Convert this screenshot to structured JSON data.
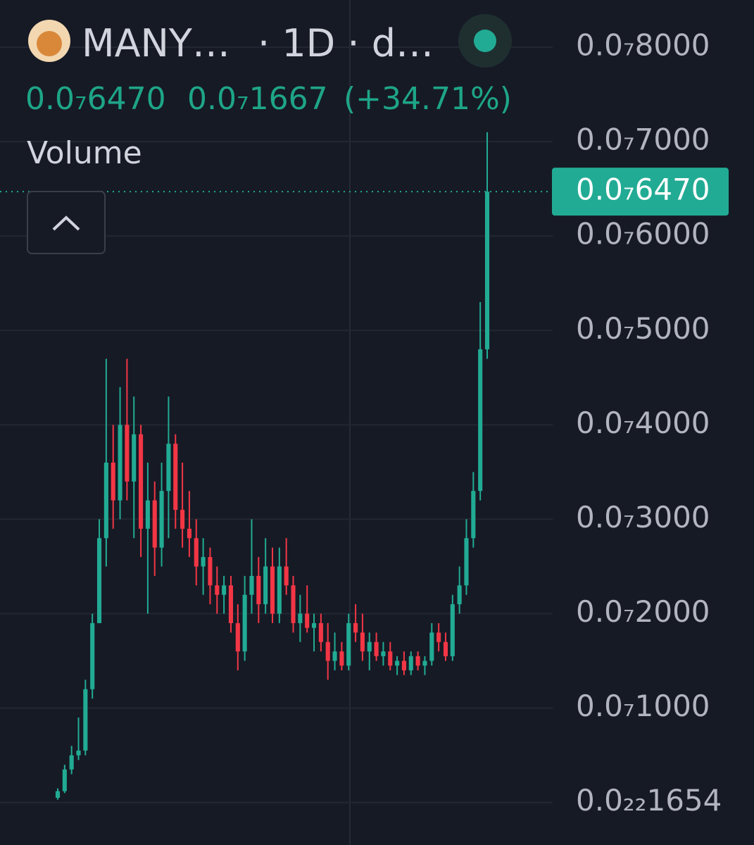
{
  "chart_data": {
    "type": "candlestick",
    "title": "MANY…",
    "subtitle": "· 1D · d…",
    "legend": {
      "price": "0.0₇6470",
      "change": "0.0₇1667",
      "change_percent": "(+34.71%)"
    },
    "indicator": "Volume",
    "up_color": "#22ab94",
    "down_color": "#f23645",
    "ylim": [
      -4.5e-09,
      8.5e-08
    ],
    "yticks": [
      {
        "value": 8e-08,
        "label": "0.0₇8000"
      },
      {
        "value": 7e-08,
        "label": "0.0₇7000"
      },
      {
        "value": 6e-08,
        "label": "0.0₇6000"
      },
      {
        "value": 5e-08,
        "label": "0.0₇5000"
      },
      {
        "value": 4e-08,
        "label": "0.0₇4000"
      },
      {
        "value": 3e-08,
        "label": "0.0₇3000"
      },
      {
        "value": 2e-08,
        "label": "0.0₇2000"
      },
      {
        "value": 1e-08,
        "label": "0.0₇1000"
      },
      {
        "value": 1.654e-23,
        "label": "0.0₂₂1654"
      }
    ],
    "last_price": {
      "value": 6.47e-08,
      "label": "0.0₇6470"
    },
    "grid": true,
    "open": [
      5e-10,
      1.2e-09,
      3.5e-09,
      5e-09,
      5.5e-09,
      1.2e-08,
      1.9e-08,
      2.8e-08,
      3.6e-08,
      3.2e-08,
      4e-08,
      3.4e-08,
      3.9e-08,
      2.9e-08,
      3.2e-08,
      2.7e-08,
      3.3e-08,
      3.8e-08,
      3.1e-08,
      2.9e-08,
      2.8e-08,
      2.5e-08,
      2.6e-08,
      2.3e-08,
      2.2e-08,
      2.3e-08,
      1.9e-08,
      1.6e-08,
      2.2e-08,
      2.4e-08,
      2.1e-08,
      2.5e-08,
      2e-08,
      2.5e-08,
      2.3e-08,
      1.9e-08,
      2e-08,
      1.85e-08,
      1.9e-08,
      1.7e-08,
      1.5e-08,
      1.6e-08,
      1.45e-08,
      1.9e-08,
      1.8e-08,
      1.6e-08,
      1.7e-08,
      1.55e-08,
      1.6e-08,
      1.45e-08,
      1.5e-08,
      1.4e-08,
      1.55e-08,
      1.45e-08,
      1.5e-08,
      1.8e-08,
      1.7e-08,
      1.55e-08,
      2.1e-08,
      2.3e-08,
      2.8e-08,
      3.3e-08,
      4.8e-08
    ],
    "high": [
      1.5e-09,
      4e-09,
      6e-09,
      9e-09,
      1.3e-08,
      2e-08,
      3e-08,
      4.7e-08,
      4e-08,
      4.4e-08,
      4.7e-08,
      4.3e-08,
      4e-08,
      3.6e-08,
      3.4e-08,
      3.6e-08,
      4.3e-08,
      3.9e-08,
      3.6e-08,
      3.3e-08,
      3e-08,
      2.8e-08,
      2.7e-08,
      2.5e-08,
      2.4e-08,
      2.4e-08,
      2.1e-08,
      2.4e-08,
      3e-08,
      2.6e-08,
      2.8e-08,
      2.7e-08,
      2.7e-08,
      2.8e-08,
      2.4e-08,
      2.2e-08,
      2.3e-08,
      2e-08,
      2e-08,
      1.9e-08,
      1.8e-08,
      1.7e-08,
      2e-08,
      2.1e-08,
      2e-08,
      1.8e-08,
      1.8e-08,
      1.7e-08,
      1.7e-08,
      1.55e-08,
      1.6e-08,
      1.6e-08,
      1.6e-08,
      1.55e-08,
      1.9e-08,
      1.9e-08,
      1.8e-08,
      2.2e-08,
      2.5e-08,
      3e-08,
      3.5e-08,
      5.3e-08,
      7.1e-08
    ],
    "low": [
      3e-10,
      1e-09,
      3e-09,
      4.5e-09,
      5e-09,
      1.1e-08,
      1.9e-08,
      2.5e-08,
      2.9e-08,
      3e-08,
      3.2e-08,
      2.8e-08,
      2.6e-08,
      2e-08,
      2.4e-08,
      2.5e-08,
      2.8e-08,
      2.9e-08,
      2.7e-08,
      2.6e-08,
      2.3e-08,
      2.2e-08,
      2.1e-08,
      2e-08,
      2e-08,
      1.8e-08,
      1.4e-08,
      1.5e-08,
      2e-08,
      1.9e-08,
      2e-08,
      1.9e-08,
      1.9e-08,
      2.2e-08,
      1.8e-08,
      1.7e-08,
      1.8e-08,
      1.6e-08,
      1.6e-08,
      1.3e-08,
      1.4e-08,
      1.4e-08,
      1.4e-08,
      1.7e-08,
      1.5e-08,
      1.4e-08,
      1.5e-08,
      1.45e-08,
      1.4e-08,
      1.35e-08,
      1.35e-08,
      1.35e-08,
      1.4e-08,
      1.35e-08,
      1.45e-08,
      1.6e-08,
      1.5e-08,
      1.5e-08,
      2e-08,
      2.2e-08,
      2.7e-08,
      3.2e-08,
      4.7e-08
    ],
    "close": [
      1.2e-09,
      3.5e-09,
      5e-09,
      5.5e-09,
      1.2e-08,
      1.9e-08,
      2.8e-08,
      3.6e-08,
      3.2e-08,
      4e-08,
      3.4e-08,
      3.9e-08,
      2.9e-08,
      3.2e-08,
      2.7e-08,
      3.3e-08,
      3.8e-08,
      3.1e-08,
      2.9e-08,
      2.8e-08,
      2.5e-08,
      2.6e-08,
      2.3e-08,
      2.2e-08,
      2.3e-08,
      1.9e-08,
      1.6e-08,
      2.2e-08,
      2.4e-08,
      2.1e-08,
      2.5e-08,
      2e-08,
      2.5e-08,
      2.3e-08,
      1.9e-08,
      2e-08,
      1.85e-08,
      1.9e-08,
      1.7e-08,
      1.5e-08,
      1.6e-08,
      1.45e-08,
      1.9e-08,
      1.8e-08,
      1.6e-08,
      1.7e-08,
      1.55e-08,
      1.6e-08,
      1.45e-08,
      1.5e-08,
      1.4e-08,
      1.55e-08,
      1.45e-08,
      1.5e-08,
      1.8e-08,
      1.7e-08,
      1.55e-08,
      2.1e-08,
      2.3e-08,
      2.8e-08,
      3.3e-08,
      4.8e-08,
      6.47e-08
    ]
  }
}
